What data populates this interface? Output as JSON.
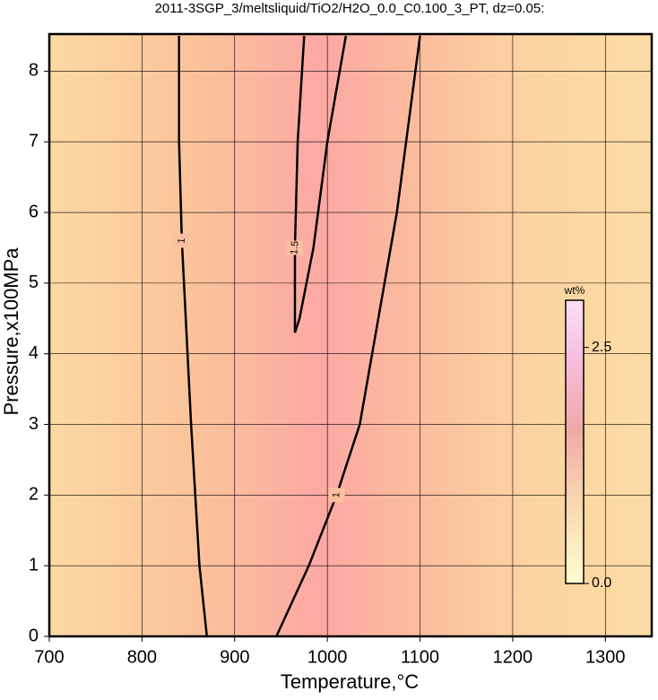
{
  "chart_data": {
    "type": "contour",
    "title": "2011-3SGP_3/meltsliquid/TiO2/H2O_0.0_C0.100_3_PT, dz=0.05:",
    "x_label": "Temperature,°C",
    "y_label": "Pressure,x100MPa",
    "xlim": [
      700,
      1350
    ],
    "xticks": [
      700,
      800,
      900,
      1000,
      1100,
      1200,
      1300
    ],
    "ylim": [
      0,
      8.5
    ],
    "yticks": [
      0,
      1,
      2,
      3,
      4,
      5,
      6,
      7,
      8
    ],
    "grid": true,
    "series": [
      {
        "label": "1",
        "color": "#000000",
        "x": [
          840,
          840,
          843,
          853,
          862,
          870
        ],
        "y": [
          8.5,
          7,
          5.6,
          3,
          1,
          0
        ]
      },
      {
        "label": "1",
        "color": "#000000",
        "x": [
          945,
          980,
          1010,
          1035,
          1055,
          1075,
          1090,
          1100
        ],
        "y": [
          0,
          1,
          2,
          3,
          4.5,
          6,
          7.5,
          8.5
        ]
      },
      {
        "label": "1.5",
        "color": "#000000",
        "x": [
          975,
          968,
          965,
          965,
          970,
          985,
          1000,
          1020
        ],
        "y": [
          8.5,
          7,
          5.5,
          4.3,
          4.5,
          5.5,
          7,
          8.5
        ]
      }
    ],
    "colorbar": {
      "label": "wt%",
      "lim": [
        0,
        3
      ],
      "ticks": [
        {
          "value": 0,
          "label": "0.0"
        },
        {
          "value": 2.5,
          "label": "2.5"
        }
      ]
    }
  }
}
